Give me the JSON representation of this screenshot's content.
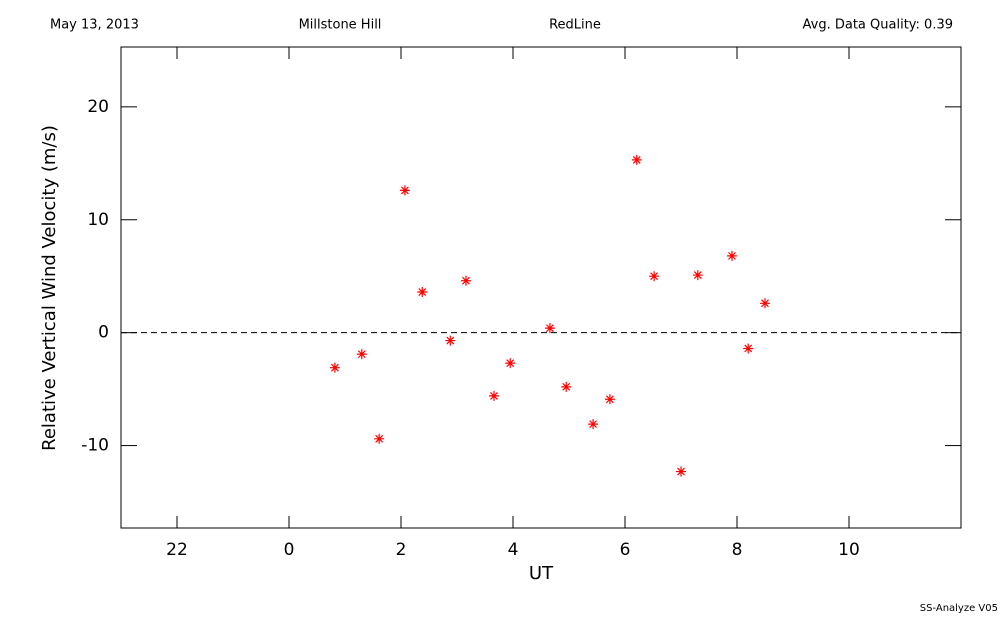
{
  "chart_data": {
    "type": "scatter",
    "annotations": [
      "May 13, 2013",
      "Millstone Hill",
      "RedLine",
      "Avg. Data Quality: 0.39"
    ],
    "footer": "SS-Analyze V05",
    "x_label": "UT",
    "y_label": "Relative Vertical Wind Velocity (m/s)",
    "xlim": [
      -3,
      12
    ],
    "xticks": [
      {
        "value": -2,
        "label": "22"
      },
      0,
      2,
      4,
      6,
      8,
      10
    ],
    "ylim": [
      -17.3,
      25.3
    ],
    "yticks": [
      -10,
      0,
      10,
      20
    ],
    "reference_line": 0,
    "series": [
      {
        "name": "RedLine",
        "color": "#ff0000",
        "x": [
          0.82,
          1.3,
          1.61,
          2.07,
          2.38,
          2.88,
          3.16,
          3.66,
          3.95,
          4.66,
          4.95,
          5.43,
          5.73,
          6.21,
          6.52,
          7.0,
          7.3,
          7.91,
          8.2,
          8.5
        ],
        "values": [
          -3.1,
          -1.9,
          -9.4,
          12.6,
          3.6,
          -0.7,
          4.6,
          -5.6,
          -2.7,
          0.4,
          -4.8,
          -8.1,
          -5.9,
          15.3,
          5.0,
          -12.3,
          5.1,
          6.8,
          -1.4,
          2.6
        ]
      }
    ]
  }
}
